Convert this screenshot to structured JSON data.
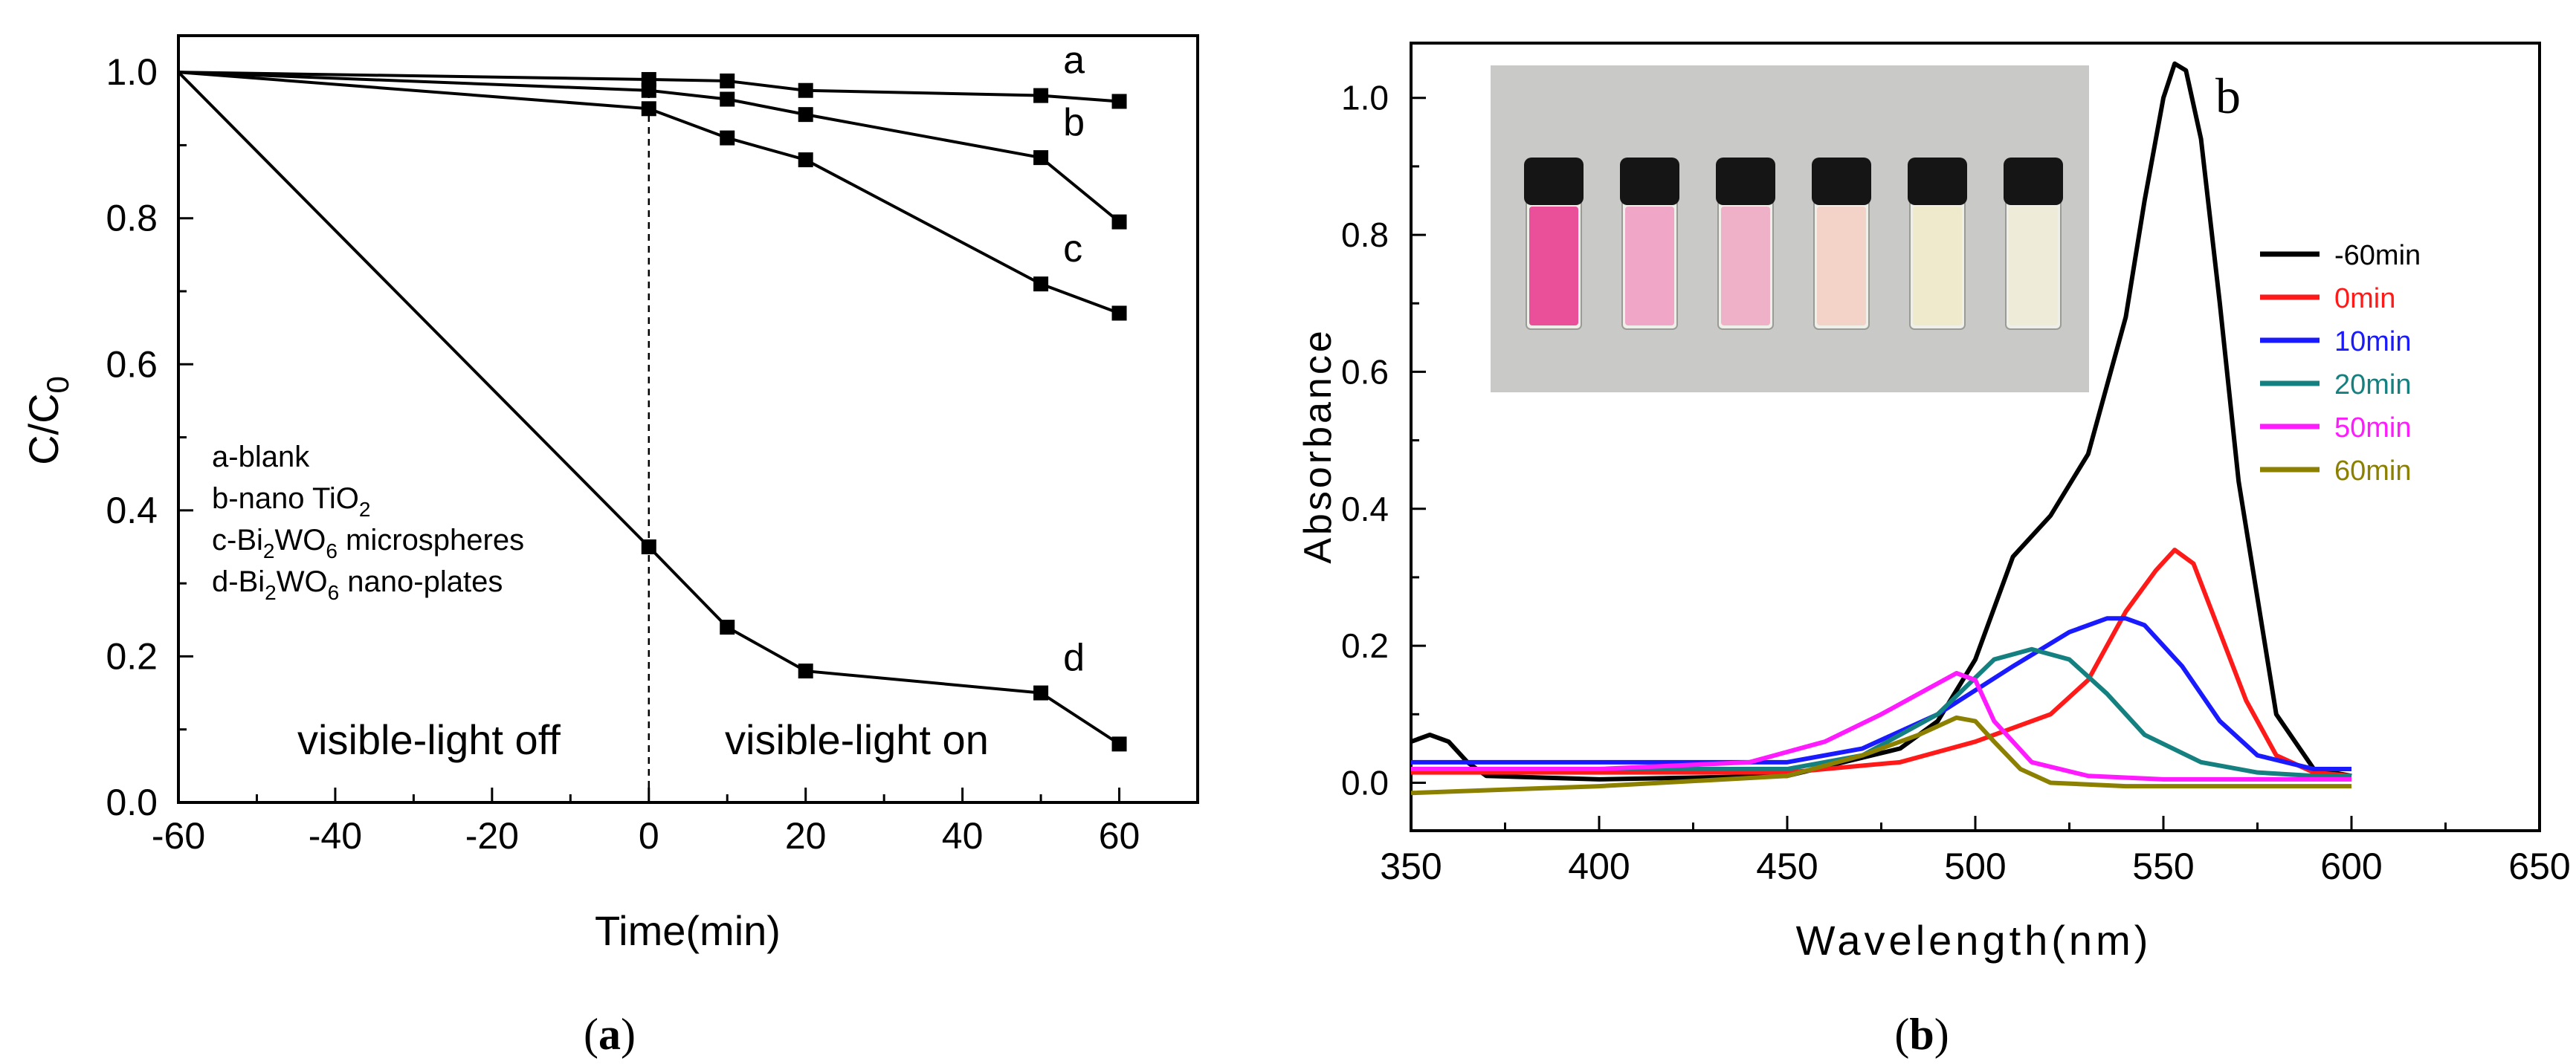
{
  "figure": {
    "panel_a_caption": "a",
    "panel_b_caption": "b",
    "caption_open": "(",
    "caption_close": ")"
  },
  "chart_data": [
    {
      "id": "a",
      "type": "line",
      "xlabel": "Time(min)",
      "ylabel": "C/C",
      "ylabel_sub": "0",
      "xlim": [
        -60,
        70
      ],
      "ylim": [
        0.0,
        1.05
      ],
      "xticks": [
        -60,
        -40,
        -20,
        0,
        20,
        40,
        60
      ],
      "yticks": [
        0.0,
        0.2,
        0.4,
        0.6,
        0.8,
        1.0
      ],
      "xtick_labels": [
        "-60",
        "-40",
        "-20",
        "0",
        "20",
        "40",
        "60"
      ],
      "ytick_labels": [
        "0.0",
        "0.2",
        "0.4",
        "0.6",
        "0.8",
        "1.0"
      ],
      "light_off_label": "visible-light off",
      "light_on_label": "visible-light on",
      "legend": [
        {
          "parts": [
            {
              "t": "a-blank"
            }
          ]
        },
        {
          "parts": [
            {
              "t": "b-nano TiO"
            },
            {
              "t": "2",
              "sub": true
            }
          ]
        },
        {
          "parts": [
            {
              "t": "c-Bi"
            },
            {
              "t": "2",
              "sub": true
            },
            {
              "t": "WO"
            },
            {
              "t": "6",
              "sub": true
            },
            {
              "t": " microspheres"
            }
          ]
        },
        {
          "parts": [
            {
              "t": "d-Bi"
            },
            {
              "t": "2",
              "sub": true
            },
            {
              "t": "WO"
            },
            {
              "t": "6",
              "sub": true
            },
            {
              "t": " nano-plates"
            }
          ]
        }
      ],
      "series": [
        {
          "name": "a",
          "x": [
            -60,
            0,
            10,
            20,
            50,
            60
          ],
          "y": [
            1.0,
            0.99,
            0.988,
            0.975,
            0.968,
            0.96
          ]
        },
        {
          "name": "b",
          "x": [
            -60,
            0,
            10,
            20,
            50,
            60
          ],
          "y": [
            1.0,
            0.975,
            0.963,
            0.942,
            0.883,
            0.795
          ]
        },
        {
          "name": "c",
          "x": [
            -60,
            0,
            10,
            20,
            50,
            60
          ],
          "y": [
            1.0,
            0.95,
            0.91,
            0.88,
            0.71,
            0.67
          ]
        },
        {
          "name": "d",
          "x": [
            -60,
            0,
            10,
            20,
            50,
            60
          ],
          "y": [
            1.0,
            0.35,
            0.24,
            0.18,
            0.15,
            0.08
          ]
        }
      ]
    },
    {
      "id": "b",
      "type": "line",
      "panel_letter": "b",
      "xlabel": "Wavelength(nm)",
      "ylabel": "Absorbance",
      "xlim": [
        350,
        650
      ],
      "ylim": [
        -0.07,
        1.08
      ],
      "xticks": [
        350,
        400,
        450,
        500,
        550,
        600,
        650
      ],
      "yticks": [
        0.0,
        0.2,
        0.4,
        0.6,
        0.8,
        1.0
      ],
      "xtick_labels": [
        "350",
        "400",
        "450",
        "500",
        "550",
        "600",
        "650"
      ],
      "ytick_labels": [
        "0.0",
        "0.2",
        "0.4",
        "0.6",
        "0.8",
        "1.0"
      ],
      "inset_vials": [
        {
          "liquid": "#ea4f9a"
        },
        {
          "liquid": "#f0a6c6"
        },
        {
          "liquid": "#efb1c8"
        },
        {
          "liquid": "#f3d3c8"
        },
        {
          "liquid": "#efeacc"
        },
        {
          "liquid": "#eeecd8"
        }
      ],
      "colors": {
        "inset_bg": "#c9c9c7",
        "cap": "#151515"
      },
      "series": [
        {
          "name": "-60min",
          "color": "#000000",
          "x": [
            350,
            355,
            360,
            365,
            370,
            400,
            450,
            480,
            490,
            500,
            510,
            520,
            530,
            540,
            545,
            550,
            553,
            556,
            560,
            565,
            570,
            580,
            590,
            600
          ],
          "y": [
            0.06,
            0.07,
            0.06,
            0.03,
            0.01,
            0.005,
            0.01,
            0.05,
            0.09,
            0.18,
            0.33,
            0.39,
            0.48,
            0.68,
            0.85,
            1.0,
            1.05,
            1.04,
            0.94,
            0.7,
            0.44,
            0.1,
            0.02,
            0.01
          ]
        },
        {
          "name": "0min",
          "color": "#ff1a1a",
          "x": [
            350,
            400,
            450,
            480,
            500,
            520,
            530,
            540,
            548,
            553,
            558,
            565,
            572,
            580,
            590,
            600
          ],
          "y": [
            0.015,
            0.015,
            0.015,
            0.03,
            0.06,
            0.1,
            0.15,
            0.25,
            0.31,
            0.34,
            0.32,
            0.22,
            0.12,
            0.04,
            0.015,
            0.01
          ]
        },
        {
          "name": "10min",
          "color": "#1a1aff",
          "x": [
            350,
            400,
            450,
            470,
            490,
            510,
            525,
            535,
            540,
            545,
            555,
            565,
            575,
            590,
            600
          ],
          "y": [
            0.03,
            0.03,
            0.03,
            0.05,
            0.1,
            0.17,
            0.22,
            0.24,
            0.24,
            0.23,
            0.17,
            0.09,
            0.04,
            0.02,
            0.02
          ]
        },
        {
          "name": "20min",
          "color": "#158080",
          "x": [
            350,
            400,
            450,
            470,
            490,
            505,
            515,
            525,
            535,
            545,
            560,
            575,
            590,
            600
          ],
          "y": [
            0.02,
            0.02,
            0.02,
            0.04,
            0.1,
            0.18,
            0.195,
            0.18,
            0.13,
            0.07,
            0.03,
            0.015,
            0.01,
            0.01
          ]
        },
        {
          "name": "50min",
          "color": "#ff1aff",
          "x": [
            350,
            400,
            440,
            460,
            475,
            485,
            495,
            500,
            505,
            515,
            530,
            550,
            600
          ],
          "y": [
            0.02,
            0.02,
            0.03,
            0.06,
            0.1,
            0.13,
            0.16,
            0.15,
            0.09,
            0.03,
            0.01,
            0.005,
            0.005
          ]
        },
        {
          "name": "60min",
          "color": "#8b8000",
          "x": [
            350,
            400,
            450,
            470,
            485,
            495,
            500,
            505,
            512,
            520,
            540,
            600
          ],
          "y": [
            -0.015,
            -0.005,
            0.01,
            0.04,
            0.07,
            0.095,
            0.09,
            0.06,
            0.02,
            0.0,
            -0.005,
            -0.005
          ]
        }
      ]
    }
  ]
}
